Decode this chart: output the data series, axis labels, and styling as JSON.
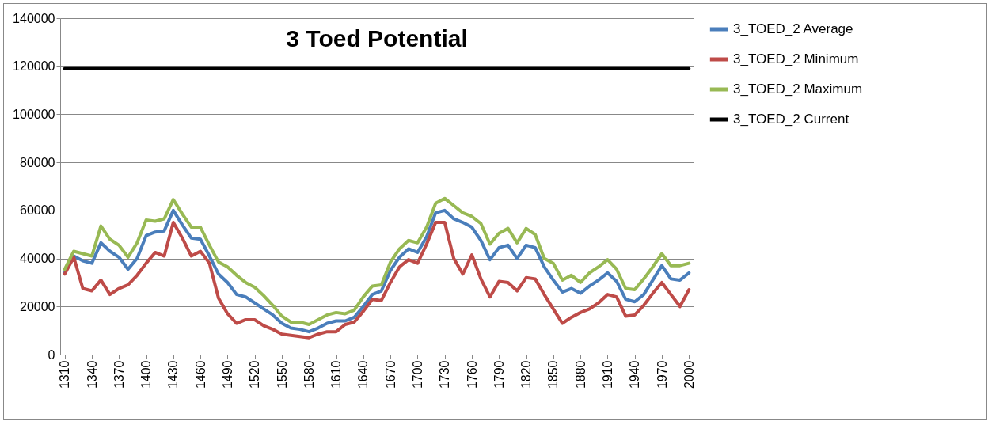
{
  "chart_data": {
    "type": "line",
    "title": "3 Toed Potential",
    "x": [
      1310,
      1320,
      1330,
      1340,
      1350,
      1360,
      1370,
      1380,
      1390,
      1400,
      1410,
      1420,
      1430,
      1440,
      1450,
      1460,
      1470,
      1480,
      1490,
      1500,
      1510,
      1520,
      1530,
      1540,
      1550,
      1560,
      1570,
      1580,
      1590,
      1600,
      1610,
      1620,
      1630,
      1640,
      1650,
      1660,
      1670,
      1680,
      1690,
      1700,
      1710,
      1720,
      1730,
      1740,
      1750,
      1760,
      1770,
      1780,
      1790,
      1800,
      1810,
      1820,
      1830,
      1840,
      1850,
      1860,
      1870,
      1880,
      1890,
      1900,
      1910,
      1920,
      1930,
      1940,
      1950,
      1960,
      1970,
      1980,
      1990,
      2000
    ],
    "series": [
      {
        "name": "3_TOED_2 Average",
        "color": "#4a7ebb",
        "values": [
          34000,
          41000,
          39000,
          38000,
          46500,
          43000,
          40500,
          35500,
          40000,
          49500,
          51000,
          51500,
          60000,
          54000,
          48500,
          48000,
          41000,
          33500,
          30000,
          25000,
          24000,
          21500,
          19000,
          16500,
          13000,
          11000,
          10500,
          9500,
          11000,
          13000,
          14000,
          14000,
          15500,
          20000,
          25000,
          26500,
          35000,
          40500,
          44000,
          42500,
          49000,
          59000,
          60000,
          56500,
          55000,
          53000,
          47500,
          39500,
          44500,
          45500,
          40000,
          45500,
          44500,
          36500,
          31000,
          26000,
          27500,
          25500,
          28500,
          31000,
          34000,
          30500,
          23000,
          22000,
          25000,
          31000,
          37000,
          31500,
          31000,
          34000
        ]
      },
      {
        "name": "3_TOED_2 Minimum",
        "color": "#be4b48",
        "values": [
          33500,
          40500,
          27500,
          26500,
          31000,
          25000,
          27500,
          29000,
          33000,
          38000,
          42500,
          41000,
          55000,
          48500,
          41000,
          43000,
          38000,
          23500,
          17000,
          13000,
          14500,
          14500,
          12000,
          10500,
          8500,
          8000,
          7500,
          7000,
          8500,
          9500,
          9500,
          12500,
          13500,
          18000,
          23000,
          22500,
          30000,
          36500,
          39500,
          38000,
          46000,
          55000,
          55000,
          40000,
          33500,
          41500,
          31500,
          24000,
          30500,
          30000,
          26500,
          32000,
          31500,
          25000,
          19000,
          13000,
          15500,
          17500,
          19000,
          21500,
          25000,
          24000,
          16000,
          16500,
          20500,
          25500,
          30000,
          25000,
          20000,
          27000
        ]
      },
      {
        "name": "3_TOED_2 Maximum",
        "color": "#98b954",
        "values": [
          35500,
          43000,
          42000,
          41000,
          53500,
          48000,
          45500,
          40500,
          46500,
          56000,
          55500,
          56500,
          64500,
          58500,
          53000,
          53000,
          45500,
          38500,
          36500,
          33000,
          30000,
          28000,
          24500,
          20500,
          16000,
          13500,
          13500,
          12500,
          14500,
          16500,
          17500,
          17000,
          18500,
          24000,
          28500,
          29000,
          38500,
          44000,
          47500,
          46500,
          53000,
          63000,
          65000,
          62000,
          59000,
          57500,
          54500,
          46000,
          50500,
          52500,
          46500,
          52500,
          50000,
          40000,
          38000,
          31000,
          33000,
          30000,
          34000,
          36500,
          39500,
          35500,
          27500,
          27000,
          31500,
          36500,
          42000,
          37000,
          37000,
          38000
        ]
      },
      {
        "name": "3_TOED_2 Current",
        "color": "#000000",
        "values": [
          119000,
          119000,
          119000,
          119000,
          119000,
          119000,
          119000,
          119000,
          119000,
          119000,
          119000,
          119000,
          119000,
          119000,
          119000,
          119000,
          119000,
          119000,
          119000,
          119000,
          119000,
          119000,
          119000,
          119000,
          119000,
          119000,
          119000,
          119000,
          119000,
          119000,
          119000,
          119000,
          119000,
          119000,
          119000,
          119000,
          119000,
          119000,
          119000,
          119000,
          119000,
          119000,
          119000,
          119000,
          119000,
          119000,
          119000,
          119000,
          119000,
          119000,
          119000,
          119000,
          119000,
          119000,
          119000,
          119000,
          119000,
          119000,
          119000,
          119000,
          119000,
          119000,
          119000,
          119000,
          119000,
          119000,
          119000,
          119000,
          119000,
          119000
        ]
      }
    ],
    "xlim": [
      1305,
      2005
    ],
    "xticks": [
      1310,
      1340,
      1370,
      1400,
      1430,
      1460,
      1490,
      1520,
      1550,
      1580,
      1610,
      1640,
      1670,
      1700,
      1730,
      1760,
      1790,
      1820,
      1850,
      1880,
      1910,
      1940,
      1970,
      2000
    ],
    "ylim": [
      0,
      140000
    ],
    "yticks": [
      0,
      20000,
      40000,
      60000,
      80000,
      100000,
      120000,
      140000
    ],
    "grid": "y",
    "legend": "right"
  }
}
